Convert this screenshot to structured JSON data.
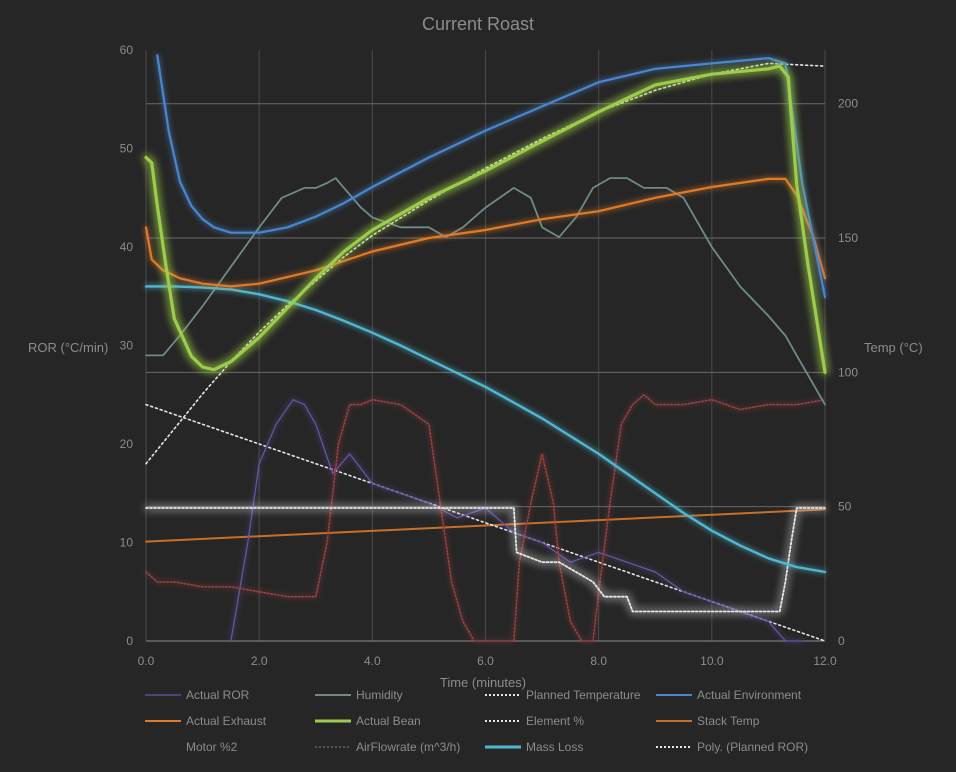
{
  "chart_data": {
    "type": "line",
    "title": "Current Roast",
    "xlabel": "Time (minutes)",
    "ylabel_left": "ROR (°C/min)",
    "ylabel_right": "Temp (°C)",
    "xlim": [
      0,
      12
    ],
    "ylim_left": [
      0,
      60
    ],
    "ylim_right": [
      0,
      220
    ],
    "x_ticks": [
      "0.0",
      "2.0",
      "4.0",
      "6.0",
      "8.0",
      "10.0",
      "12.0"
    ],
    "y_left_ticks": [
      "0",
      "10",
      "20",
      "30",
      "40",
      "50",
      "60"
    ],
    "y_right_ticks": [
      "0",
      "50",
      "100",
      "150",
      "200"
    ],
    "legend_position": "bottom",
    "legend": [
      {
        "name": "Actual ROR",
        "color": "#6a55a8",
        "style": "thin"
      },
      {
        "name": "Humidity",
        "color": "#6f8a8a",
        "style": "solid"
      },
      {
        "name": "Planned Temperature",
        "color": "#e6e6e6",
        "style": "dotted"
      },
      {
        "name": "Actual Environment",
        "color": "#4a86d0",
        "style": "solid"
      },
      {
        "name": "Actual Exhaust",
        "color": "#e07a28",
        "style": "solid"
      },
      {
        "name": "Actual Bean",
        "color": "#9ccc4a",
        "style": "bold"
      },
      {
        "name": "Element %",
        "color": "#e6e6e6",
        "style": "dotted"
      },
      {
        "name": "Stack Temp",
        "color": "#c8702a",
        "style": "solid"
      },
      {
        "name": "Motor %2",
        "color": "#262626",
        "style": "none"
      },
      {
        "name": "AirFlowrate (m^3/h)",
        "color": "#555555",
        "style": "dotted"
      },
      {
        "name": "Mass Loss",
        "color": "#4fb8d0",
        "style": "bold"
      },
      {
        "name": "Poly. (Planned ROR)",
        "color": "#e6e6e6",
        "style": "dotted"
      }
    ],
    "series": [
      {
        "name": "Actual Environment",
        "axis": "right",
        "color": "#4a86d0",
        "x": [
          0.2,
          0.4,
          0.6,
          0.8,
          1.0,
          1.2,
          1.5,
          2.0,
          2.5,
          3.0,
          3.5,
          4.0,
          5.0,
          6.0,
          7.0,
          8.0,
          9.0,
          10.0,
          11.0,
          11.3,
          11.6,
          12.0
        ],
        "y": [
          218,
          190,
          171,
          162,
          157,
          154,
          152,
          152,
          154,
          158,
          163,
          169,
          180,
          190,
          199,
          208,
          213,
          215,
          217,
          215,
          170,
          128
        ]
      },
      {
        "name": "Actual Bean",
        "axis": "right",
        "color": "#9ccc4a",
        "x": [
          0.0,
          0.1,
          0.2,
          0.35,
          0.5,
          0.8,
          1.0,
          1.2,
          1.5,
          2.0,
          2.5,
          3.0,
          3.5,
          4.0,
          5.0,
          6.0,
          7.0,
          8.0,
          9.0,
          10.0,
          11.0,
          11.2,
          11.35,
          11.5,
          11.7,
          11.85,
          12.0
        ],
        "y": [
          180,
          178,
          162,
          140,
          120,
          106,
          102,
          101,
          104,
          113,
          124,
          135,
          145,
          153,
          165,
          175,
          186,
          197,
          207,
          211,
          213,
          214,
          210,
          170,
          140,
          120,
          100
        ]
      },
      {
        "name": "Actual Exhaust",
        "axis": "right",
        "color": "#e07a28",
        "x": [
          0.0,
          0.1,
          0.3,
          0.6,
          1.0,
          1.5,
          2.0,
          3.0,
          4.0,
          5.0,
          6.0,
          7.0,
          8.0,
          9.0,
          10.0,
          11.0,
          11.3,
          11.5,
          11.8,
          12.0
        ],
        "y": [
          154,
          142,
          138,
          135,
          133,
          132,
          133,
          138,
          145,
          150,
          153,
          157,
          160,
          165,
          169,
          172,
          172,
          166,
          150,
          135
        ]
      },
      {
        "name": "Humidity",
        "axis": "left",
        "color": "#6f8a8a",
        "x": [
          0.0,
          0.3,
          0.6,
          1.0,
          1.5,
          2.0,
          2.4,
          2.8,
          3.0,
          3.2,
          3.35,
          3.5,
          3.8,
          4.0,
          4.5,
          5.0,
          5.3,
          5.6,
          6.0,
          6.5,
          6.8,
          7.0,
          7.3,
          7.6,
          7.9,
          8.2,
          8.5,
          8.8,
          9.2,
          9.5,
          10.0,
          10.5,
          11.0,
          11.3,
          11.5,
          11.8,
          12.0
        ],
        "y": [
          29,
          29,
          31,
          34,
          38,
          42,
          45,
          46,
          46,
          46.5,
          47,
          46,
          44,
          43,
          42,
          42,
          41,
          42,
          44,
          46,
          45,
          42,
          41,
          43,
          46,
          47,
          47,
          46,
          46,
          45,
          40,
          36,
          33,
          31,
          29,
          26,
          24
        ]
      },
      {
        "name": "Mass Loss",
        "axis": "left",
        "color": "#4fb8d0",
        "x": [
          0.0,
          0.5,
          1.0,
          1.5,
          2.0,
          2.5,
          3.0,
          3.5,
          4.0,
          4.5,
          5.0,
          5.5,
          6.0,
          6.5,
          7.0,
          7.5,
          8.0,
          8.5,
          9.0,
          9.5,
          10.0,
          10.5,
          11.0,
          11.5,
          12.0
        ],
        "y": [
          36.0,
          36.0,
          35.9,
          35.7,
          35.2,
          34.5,
          33.6,
          32.5,
          31.3,
          30.0,
          28.6,
          27.2,
          25.8,
          24.2,
          22.6,
          20.8,
          19.0,
          17.0,
          15.0,
          13.0,
          11.2,
          9.7,
          8.4,
          7.5,
          7.0
        ]
      },
      {
        "name": "Stack Temp",
        "axis": "right",
        "color": "#c8702a",
        "x": [
          0.0,
          12.0
        ],
        "y": [
          37,
          49
        ]
      },
      {
        "name": "Element %",
        "axis": "left",
        "color": "#e6e6e6",
        "x": [
          0.0,
          6.5,
          6.55,
          7.0,
          7.3,
          7.6,
          7.9,
          8.1,
          8.5,
          8.6,
          9.0,
          9.5,
          10.0,
          10.5,
          11.0,
          11.2,
          11.3,
          11.4,
          11.5,
          12.0
        ],
        "y": [
          13.5,
          13.5,
          9,
          8,
          8,
          7,
          6,
          4.5,
          4.5,
          3,
          3,
          3,
          3,
          3,
          3,
          3,
          6,
          10,
          13.5,
          13.5
        ]
      },
      {
        "name": "Planned Temperature",
        "axis": "right",
        "color": "#e6e6e6",
        "x": [
          0.0,
          0.5,
          1.0,
          1.5,
          2.0,
          2.5,
          3.0,
          3.5,
          4.0,
          5.0,
          6.0,
          7.0,
          8.0,
          9.0,
          10.0,
          11.0,
          12.0
        ],
        "y": [
          66,
          79,
          92,
          104,
          115,
          125,
          134,
          143,
          151,
          164,
          176,
          187,
          197,
          205,
          211,
          215,
          214
        ]
      },
      {
        "name": "Poly. (Planned ROR)",
        "axis": "left",
        "color": "#e6e6e6",
        "x": [
          0.0,
          12.0
        ],
        "y": [
          24,
          0
        ]
      },
      {
        "name": "Actual ROR",
        "axis": "left",
        "color": "#6a55a8",
        "x": [
          1.5,
          1.8,
          2.0,
          2.3,
          2.6,
          2.8,
          3.0,
          3.3,
          3.6,
          4.0,
          4.5,
          5.0,
          5.5,
          6.0,
          6.5,
          7.0,
          7.5,
          8.0,
          8.5,
          9.0,
          9.5,
          10.0,
          10.5,
          11.0,
          11.3,
          11.6
        ],
        "y": [
          0,
          10,
          18,
          22,
          24.5,
          24,
          22,
          17,
          19,
          16,
          15,
          14,
          12.5,
          13.5,
          11,
          10,
          8,
          9,
          8,
          7,
          5,
          4,
          3,
          2,
          0,
          0
        ]
      },
      {
        "name": "AirFlowrate (m^3/h)",
        "axis": "left",
        "color": "#9a3f3f",
        "x": [
          0.0,
          0.2,
          0.5,
          1.0,
          1.5,
          2.0,
          2.5,
          3.0,
          3.2,
          3.4,
          3.6,
          3.8,
          4.0,
          4.5,
          5.0,
          5.2,
          5.4,
          5.6,
          5.8,
          6.0,
          6.5,
          6.6,
          6.8,
          7.0,
          7.2,
          7.3,
          7.5,
          7.7,
          7.9,
          8.0,
          8.2,
          8.4,
          8.6,
          8.8,
          9.0,
          9.5,
          10.0,
          10.5,
          11.0,
          11.5,
          12.0
        ],
        "y": [
          7,
          6,
          6,
          5.5,
          5.5,
          5,
          4.5,
          4.5,
          10,
          20,
          24,
          24,
          24.5,
          24,
          22,
          14,
          6,
          2,
          0,
          0,
          0,
          8,
          14,
          19,
          14,
          8,
          2,
          0,
          0,
          5,
          14,
          22,
          24,
          25,
          24,
          24,
          24.5,
          23.5,
          24,
          24,
          24.5
        ]
      }
    ]
  }
}
